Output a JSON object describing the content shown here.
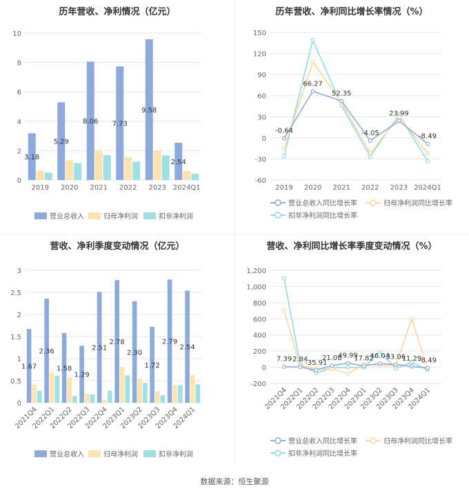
{
  "source": "数据来源：恒生聚源",
  "colors": {
    "revenue": "#8eaadc",
    "net": "#fde3b0",
    "deducted": "#9ee0e3",
    "rev_line": "#8eaadc",
    "net_line": "#fbd59a",
    "ded_line": "#8ddde2"
  },
  "chart_data": [
    {
      "type": "bar",
      "title": "历年营收、净利情况（亿元）",
      "categories": [
        "2019",
        "2020",
        "2021",
        "2022",
        "2023",
        "2024Q1"
      ],
      "ylim": [
        0,
        10
      ],
      "yticks": [
        "0",
        "2",
        "4",
        "6",
        "8",
        "10"
      ],
      "series": [
        {
          "name": "营业总收入",
          "values": [
            3.18,
            5.29,
            8.06,
            7.73,
            9.58,
            2.54
          ],
          "labels": [
            "3.18",
            "5.29",
            "8.06",
            "7.73",
            "9.58",
            "2.54"
          ]
        },
        {
          "name": "归母净利润",
          "values": [
            0.65,
            1.35,
            2.0,
            1.55,
            2.0,
            0.62
          ]
        },
        {
          "name": "扣非净利润",
          "values": [
            0.5,
            1.15,
            1.7,
            1.25,
            1.68,
            0.42
          ]
        }
      ],
      "legend": "bottom"
    },
    {
      "type": "line",
      "title": "历年营收、净利同比增长率情况（%）",
      "categories": [
        "2019",
        "2020",
        "2021",
        "2022",
        "2023",
        "2024Q1"
      ],
      "ylim": [
        -60,
        150
      ],
      "yticks": [
        "-60",
        "-30",
        "0",
        "30",
        "60",
        "90",
        "120",
        "150"
      ],
      "series": [
        {
          "name": "营业总收入同比增长率",
          "values": [
            -0.64,
            66.27,
            52.35,
            -4.05,
            23.99,
            -8.49
          ],
          "labels": [
            "-0.64",
            "66.27",
            "52.35",
            "-4.05",
            "23.99",
            "-8.49"
          ]
        },
        {
          "name": "归母净利润同比增长率",
          "values": [
            -15,
            108,
            50,
            -22,
            30,
            -22
          ]
        },
        {
          "name": "扣非净利润同比增长率",
          "values": [
            -26,
            139,
            46,
            -27,
            33,
            -33
          ]
        }
      ],
      "legend": "bottom"
    },
    {
      "type": "bar",
      "title": "营收、净利季度变动情况（亿元）",
      "categories": [
        "2021Q4",
        "2022Q1",
        "2022Q2",
        "2022Q3",
        "2022Q4",
        "2023Q1",
        "2023Q2",
        "2023Q3",
        "2023Q4",
        "2024Q1"
      ],
      "ylim": [
        0,
        3
      ],
      "yticks": [
        "0",
        "0.5",
        "1",
        "1.5",
        "2",
        "2.5",
        "3"
      ],
      "series": [
        {
          "name": "营业总收入",
          "values": [
            1.67,
            2.36,
            1.58,
            1.29,
            2.51,
            2.78,
            2.3,
            1.72,
            2.79,
            2.54
          ],
          "labels": [
            "1.67",
            "2.36",
            "1.58",
            "1.29",
            "2.51",
            "2.78",
            "2.30",
            "1.72",
            "2.79",
            "2.54"
          ]
        },
        {
          "name": "归母净利润",
          "values": [
            0.42,
            0.68,
            0.57,
            0.21,
            0.07,
            0.81,
            0.55,
            0.26,
            0.4,
            0.63
          ]
        },
        {
          "name": "扣非净利润",
          "values": [
            0.27,
            0.61,
            0.15,
            0.19,
            0.27,
            0.62,
            0.45,
            0.17,
            0.4,
            0.42
          ]
        }
      ],
      "legend": "bottom"
    },
    {
      "type": "line",
      "title": "营收、净利同比增长率季度变动情况（%）",
      "categories": [
        "2021Q4",
        "2022Q1",
        "2022Q2",
        "2022Q3",
        "2022Q4",
        "2023Q1",
        "2023Q2",
        "2023Q3",
        "2023Q4",
        "2024Q1"
      ],
      "ylim": [
        -200,
        1200
      ],
      "yticks": [
        "-200",
        "0",
        "200",
        "400",
        "600",
        "800",
        "1,000",
        "1,200"
      ],
      "series": [
        {
          "name": "营业总收入同比增长率",
          "values": [
            7.39,
            2.84,
            -35.91,
            21.08,
            49.99,
            17.82,
            46.04,
            33.06,
            11.29,
            -8.49
          ],
          "labels": [
            "7.39",
            "2.84",
            "-35.91",
            "21.08",
            "49.99",
            "17.82",
            "46.04",
            "33.06",
            "11.29",
            "-8.49"
          ]
        },
        {
          "name": "归母净利润同比增长率",
          "values": [
            700,
            20,
            -20,
            -20,
            -80,
            40,
            20,
            20,
            600,
            -22
          ]
        },
        {
          "name": "扣非净利润同比增长率",
          "values": [
            1100,
            40,
            -70,
            -10,
            0,
            -5,
            190,
            -15,
            60,
            -33
          ]
        }
      ],
      "legend": "bottom"
    }
  ]
}
